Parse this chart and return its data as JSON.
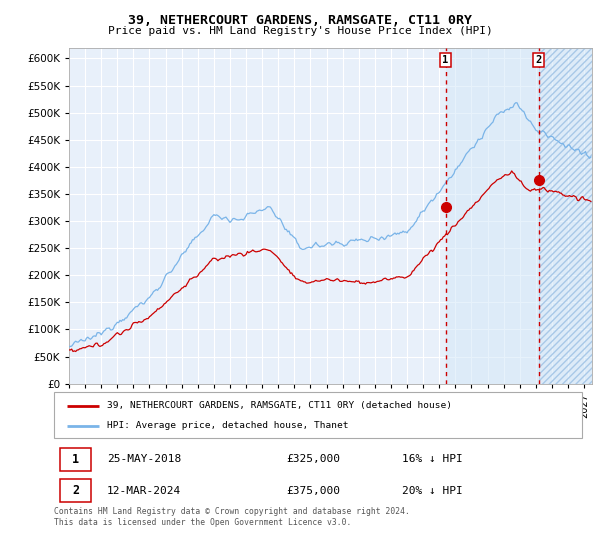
{
  "title": "39, NETHERCOURT GARDENS, RAMSGATE, CT11 0RY",
  "subtitle": "Price paid vs. HM Land Registry's House Price Index (HPI)",
  "ylim": [
    0,
    620000
  ],
  "xlim_start": 1995.0,
  "xlim_end": 2027.5,
  "yticks": [
    0,
    50000,
    100000,
    150000,
    200000,
    250000,
    300000,
    350000,
    400000,
    450000,
    500000,
    550000,
    600000
  ],
  "ytick_labels": [
    "£0",
    "£50K",
    "£100K",
    "£150K",
    "£200K",
    "£250K",
    "£300K",
    "£350K",
    "£400K",
    "£450K",
    "£500K",
    "£550K",
    "£600K"
  ],
  "xtick_years": [
    1995,
    1996,
    1997,
    1998,
    1999,
    2000,
    2001,
    2002,
    2003,
    2004,
    2005,
    2006,
    2007,
    2008,
    2009,
    2010,
    2011,
    2012,
    2013,
    2014,
    2015,
    2016,
    2017,
    2018,
    2019,
    2020,
    2021,
    2022,
    2023,
    2024,
    2025,
    2026,
    2027
  ],
  "sale1_x": 2018.39,
  "sale1_y": 325000,
  "sale1_label": "1",
  "sale2_x": 2024.19,
  "sale2_y": 375000,
  "sale2_label": "2",
  "hpi_color": "#7ab4e8",
  "price_color": "#cc0000",
  "bg_chart": "#e8f0fa",
  "grid_color": "#ffffff",
  "legend_label_price": "39, NETHERCOURT GARDENS, RAMSGATE, CT11 0RY (detached house)",
  "legend_label_hpi": "HPI: Average price, detached house, Thanet",
  "annotation1_date": "25-MAY-2018",
  "annotation1_price": "£325,000",
  "annotation1_hpi": "16% ↓ HPI",
  "annotation2_date": "12-MAR-2024",
  "annotation2_price": "£375,000",
  "annotation2_hpi": "20% ↓ HPI",
  "footer": "Contains HM Land Registry data © Crown copyright and database right 2024.\nThis data is licensed under the Open Government Licence v3.0."
}
